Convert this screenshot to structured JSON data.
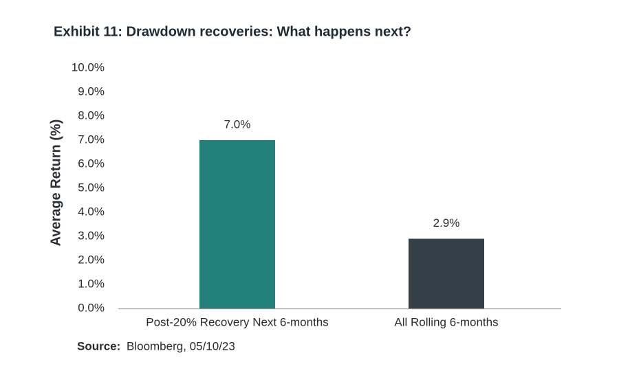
{
  "chart_data": {
    "type": "bar",
    "title": "Exhibit 11: Drawdown recoveries: What happens next?",
    "y_label": "Average Return (%)",
    "categories": [
      "Post-20% Recovery Next 6-months",
      "All Rolling 6-months"
    ],
    "values": [
      7.0,
      2.9
    ],
    "value_labels": [
      "7.0%",
      "2.9%"
    ],
    "colors": [
      "#22807a",
      "#353f48"
    ],
    "ylim": [
      0,
      10
    ],
    "yticks": [
      {
        "value": 0,
        "label": "0.0%"
      },
      {
        "value": 1,
        "label": "1.0%"
      },
      {
        "value": 2,
        "label": "2.0%"
      },
      {
        "value": 3,
        "label": "3.0%"
      },
      {
        "value": 4,
        "label": "4.0%"
      },
      {
        "value": 5,
        "label": "5.0%"
      },
      {
        "value": 6,
        "label": "6.0%"
      },
      {
        "value": 7,
        "label": "7.0%"
      },
      {
        "value": 8,
        "label": "8.0%"
      },
      {
        "value": 9,
        "label": "9.0%"
      },
      {
        "value": 10,
        "label": "10.0%"
      }
    ],
    "grid": false,
    "source_label": "Source:",
    "source": "Bloomberg, 05/10/23"
  }
}
